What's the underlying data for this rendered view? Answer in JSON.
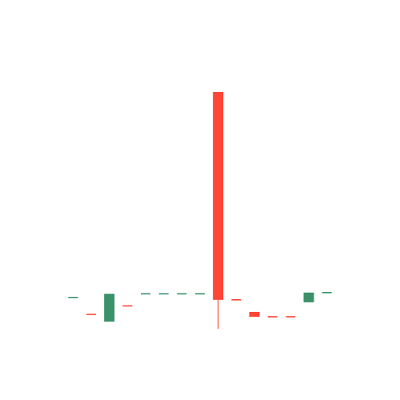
{
  "chart_data": {
    "type": "candlestick",
    "title": "",
    "xlabel": "",
    "ylabel": "",
    "axes_visible": false,
    "grid": false,
    "colors": {
      "up": "#3a916a",
      "down": "#ff4536"
    },
    "candles": [
      {
        "open": 100.5,
        "high": 100.5,
        "low": 100.5,
        "close": 100.5,
        "direction": "up"
      },
      {
        "open": 99.8,
        "high": 99.8,
        "low": 99.8,
        "close": 99.8,
        "direction": "down"
      },
      {
        "open": 99.5,
        "high": 100.65,
        "low": 99.5,
        "close": 100.65,
        "direction": "up"
      },
      {
        "open": 100.15,
        "high": 100.15,
        "low": 100.15,
        "close": 100.15,
        "direction": "down"
      },
      {
        "open": 100.65,
        "high": 100.65,
        "low": 100.65,
        "close": 100.65,
        "direction": "up"
      },
      {
        "open": 100.65,
        "high": 100.65,
        "low": 100.65,
        "close": 100.65,
        "direction": "up"
      },
      {
        "open": 100.65,
        "high": 100.65,
        "low": 100.65,
        "close": 100.65,
        "direction": "up"
      },
      {
        "open": 100.65,
        "high": 100.65,
        "low": 100.65,
        "close": 100.65,
        "direction": "up"
      },
      {
        "open": 109.0,
        "high": 109.0,
        "low": 99.2,
        "close": 100.4,
        "direction": "down"
      },
      {
        "open": 100.4,
        "high": 100.4,
        "low": 100.4,
        "close": 100.4,
        "direction": "down"
      },
      {
        "open": 99.9,
        "high": 99.9,
        "low": 99.7,
        "close": 99.7,
        "direction": "down"
      },
      {
        "open": 99.7,
        "high": 99.7,
        "low": 99.7,
        "close": 99.7,
        "direction": "down"
      },
      {
        "open": 99.7,
        "high": 99.7,
        "low": 99.7,
        "close": 99.7,
        "direction": "down"
      },
      {
        "open": 100.3,
        "high": 100.7,
        "low": 100.3,
        "close": 100.7,
        "direction": "up"
      },
      {
        "open": 100.7,
        "high": 100.7,
        "low": 100.7,
        "close": 100.7,
        "direction": "up"
      }
    ]
  }
}
